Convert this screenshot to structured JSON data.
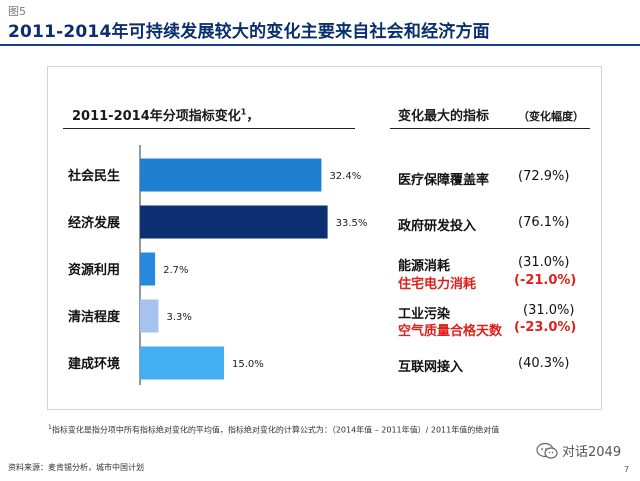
{
  "header": {
    "figure_label": "图5",
    "title": "2011-2014年可持续发展较大的变化主要来自社会和经济方面"
  },
  "chart_data": {
    "type": "bar",
    "orientation": "horizontal",
    "title": "2011-2014年分项指标变化",
    "title_sup": "1",
    "title_suffix": "，",
    "categories": [
      "社会民生",
      "经济发展",
      "资源利用",
      "清洁程度",
      "建成环境"
    ],
    "values": [
      32.4,
      33.5,
      2.7,
      3.3,
      15.0
    ],
    "value_labels": [
      "32.4%",
      "33.5%",
      "2.7%",
      "3.3%",
      "15.0%"
    ],
    "colors": [
      "#1f7fd0",
      "#0c2e72",
      "#2689dd",
      "#a6c3ef",
      "#44aef2"
    ],
    "xlim": [
      0,
      40
    ],
    "grid": false,
    "legend": "none"
  },
  "right_panel": {
    "header": "变化最大的指标",
    "header_sub": "（变化幅度）",
    "rows": [
      {
        "label": "医疗保障覆盖率",
        "value": "(72.9%)",
        "red": false
      },
      {
        "label": "政府研发投入",
        "value": "(76.1%)",
        "red": false
      },
      {
        "label": "能源消耗",
        "value": "(31.0%)",
        "red": false
      },
      {
        "label": "住宅电力消耗",
        "value": "(-21.0%)",
        "red": true
      },
      {
        "label": "工业污染",
        "value": "(31.0%)",
        "red": false
      },
      {
        "label": "空气质量合格天数",
        "value": "(-23.0%)",
        "red": true
      },
      {
        "label": "互联网接入",
        "value": "(40.3%)",
        "red": false
      }
    ]
  },
  "footnote": {
    "sup": "1",
    "text": "指标变化是指分项中所有指标绝对变化的平均值，指标绝对变化的计算公式为：（2014年值 – 2011年值）/ 2011年值的绝对值"
  },
  "source": "资料来源：麦肯锡分析，城市中国计划",
  "page_number": "7",
  "watermark": "对话2049",
  "colors": {
    "title": "#0a2f6e",
    "highlight_red": "#e0201b"
  }
}
